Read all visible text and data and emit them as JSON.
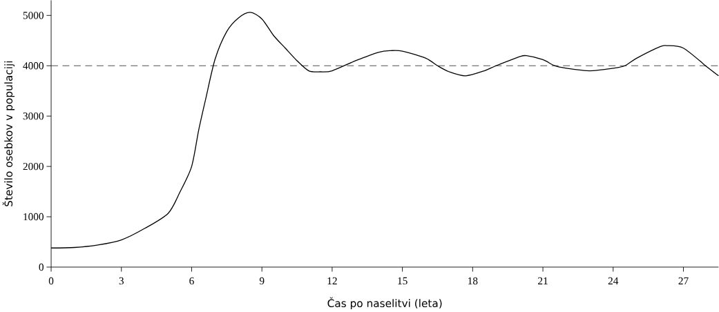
{
  "chart_data": {
    "type": "line",
    "xlabel": "Čas po naselitvi (leta)",
    "ylabel": "Število osebkov v populaciji",
    "x": [
      0,
      1,
      2,
      3,
      4,
      5,
      5.5,
      6,
      6.3,
      6.6,
      7,
      7.5,
      8,
      8.5,
      9,
      9.5,
      10,
      10.5,
      11,
      11.5,
      12,
      13,
      14,
      14.5,
      15,
      16,
      16.5,
      17,
      17.7,
      18.5,
      19,
      20,
      20.3,
      21,
      21.5,
      22,
      23,
      24,
      24.5,
      25,
      26,
      26.3,
      27,
      28,
      28.5
    ],
    "series": [
      {
        "color": "#000000",
        "values": [
          380,
          390,
          440,
          540,
          770,
          1070,
          1490,
          2000,
          2720,
          3340,
          4130,
          4680,
          4950,
          5060,
          4930,
          4600,
          4350,
          4100,
          3900,
          3880,
          3900,
          4100,
          4270,
          4300,
          4290,
          4150,
          4000,
          3880,
          3800,
          3900,
          4000,
          4180,
          4200,
          4120,
          4000,
          3950,
          3900,
          3950,
          4000,
          4150,
          4380,
          4400,
          4350,
          3980,
          3800
        ]
      }
    ],
    "xlim": [
      0,
      28.5
    ],
    "ylim": [
      0,
      5300
    ],
    "xticks": [
      0,
      3,
      6,
      9,
      12,
      15,
      18,
      21,
      24,
      27
    ],
    "yticks": [
      0,
      1000,
      2000,
      3000,
      4000,
      5000
    ],
    "ref_lines": [
      {
        "axis": "y",
        "value": 4000,
        "line_style": "dashed",
        "color": "#333333"
      }
    ],
    "grid": false,
    "marker": "none",
    "line_style": "solid"
  }
}
